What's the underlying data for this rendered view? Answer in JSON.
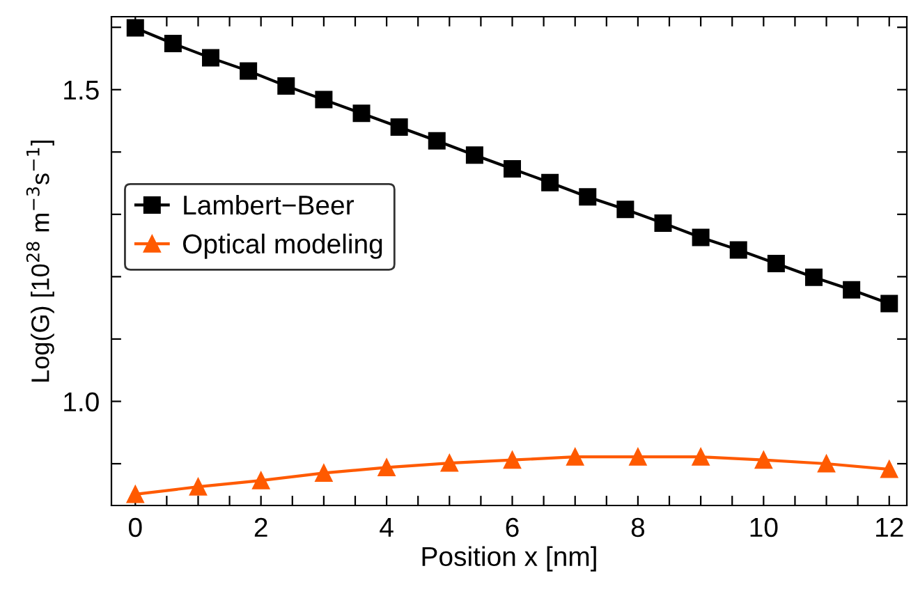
{
  "chart_data": {
    "type": "line",
    "xlabel": "Position x [nm]",
    "ylabel": "Log(G) [10$^{28}$ m$^{−3}$s$^{−1}$]",
    "xlim": [
      -0.38,
      12.28
    ],
    "ylim": [
      0.833,
      1.617
    ],
    "xticks": [
      0,
      2,
      4,
      6,
      8,
      10,
      12,
      {
        "value": 0.5,
        "label": null
      },
      {
        "value": 1,
        "label": null
      },
      {
        "value": 1.5,
        "label": null
      },
      {
        "value": 2.5,
        "label": null
      },
      {
        "value": 3,
        "label": null
      },
      {
        "value": 3.5,
        "label": null
      },
      {
        "value": 4.5,
        "label": null
      },
      {
        "value": 5,
        "label": null
      },
      {
        "value": 5.5,
        "label": null
      },
      {
        "value": 6.5,
        "label": null
      },
      {
        "value": 7,
        "label": null
      },
      {
        "value": 7.5,
        "label": null
      },
      {
        "value": 8.5,
        "label": null
      },
      {
        "value": 9,
        "label": null
      },
      {
        "value": 9.5,
        "label": null
      },
      {
        "value": 10.5,
        "label": null
      },
      {
        "value": 11,
        "label": null
      },
      {
        "value": 11.5,
        "label": null
      }
    ],
    "yticks": [
      {
        "value": 1.0,
        "label": "1.0"
      },
      1.5,
      {
        "value": 0.9,
        "label": null
      },
      {
        "value": 1.1,
        "label": null
      },
      {
        "value": 1.2,
        "label": null
      },
      {
        "value": 1.3,
        "label": null
      },
      {
        "value": 1.4,
        "label": null
      },
      {
        "value": 1.6,
        "label": null
      }
    ],
    "grid": false,
    "legend": "left",
    "line_style": "solid",
    "series": [
      {
        "name": "Lambert−Beer",
        "color": "#000000",
        "marker": "square",
        "x": [
          0,
          0.6,
          1.2,
          1.8,
          2.4,
          3.0,
          3.6,
          4.2,
          4.8,
          5.4,
          6.0,
          6.6,
          7.2,
          7.8,
          8.4,
          9.0,
          9.6,
          10.2,
          10.8,
          11.4,
          12.0
        ],
        "values": [
          1.599,
          1.574,
          1.551,
          1.53,
          1.506,
          1.484,
          1.462,
          1.44,
          1.418,
          1.395,
          1.373,
          1.351,
          1.328,
          1.308,
          1.286,
          1.263,
          1.243,
          1.221,
          1.199,
          1.179,
          1.157
        ]
      },
      {
        "name": "Optical modeling",
        "color": "#ff5a00",
        "marker": "triangle",
        "x": [
          0,
          1,
          2,
          3,
          4,
          5,
          6,
          7,
          8,
          9,
          10,
          11,
          12
        ],
        "values": [
          0.851,
          0.863,
          0.873,
          0.885,
          0.894,
          0.901,
          0.906,
          0.911,
          0.911,
          0.911,
          0.906,
          0.9,
          0.891
        ]
      }
    ]
  }
}
